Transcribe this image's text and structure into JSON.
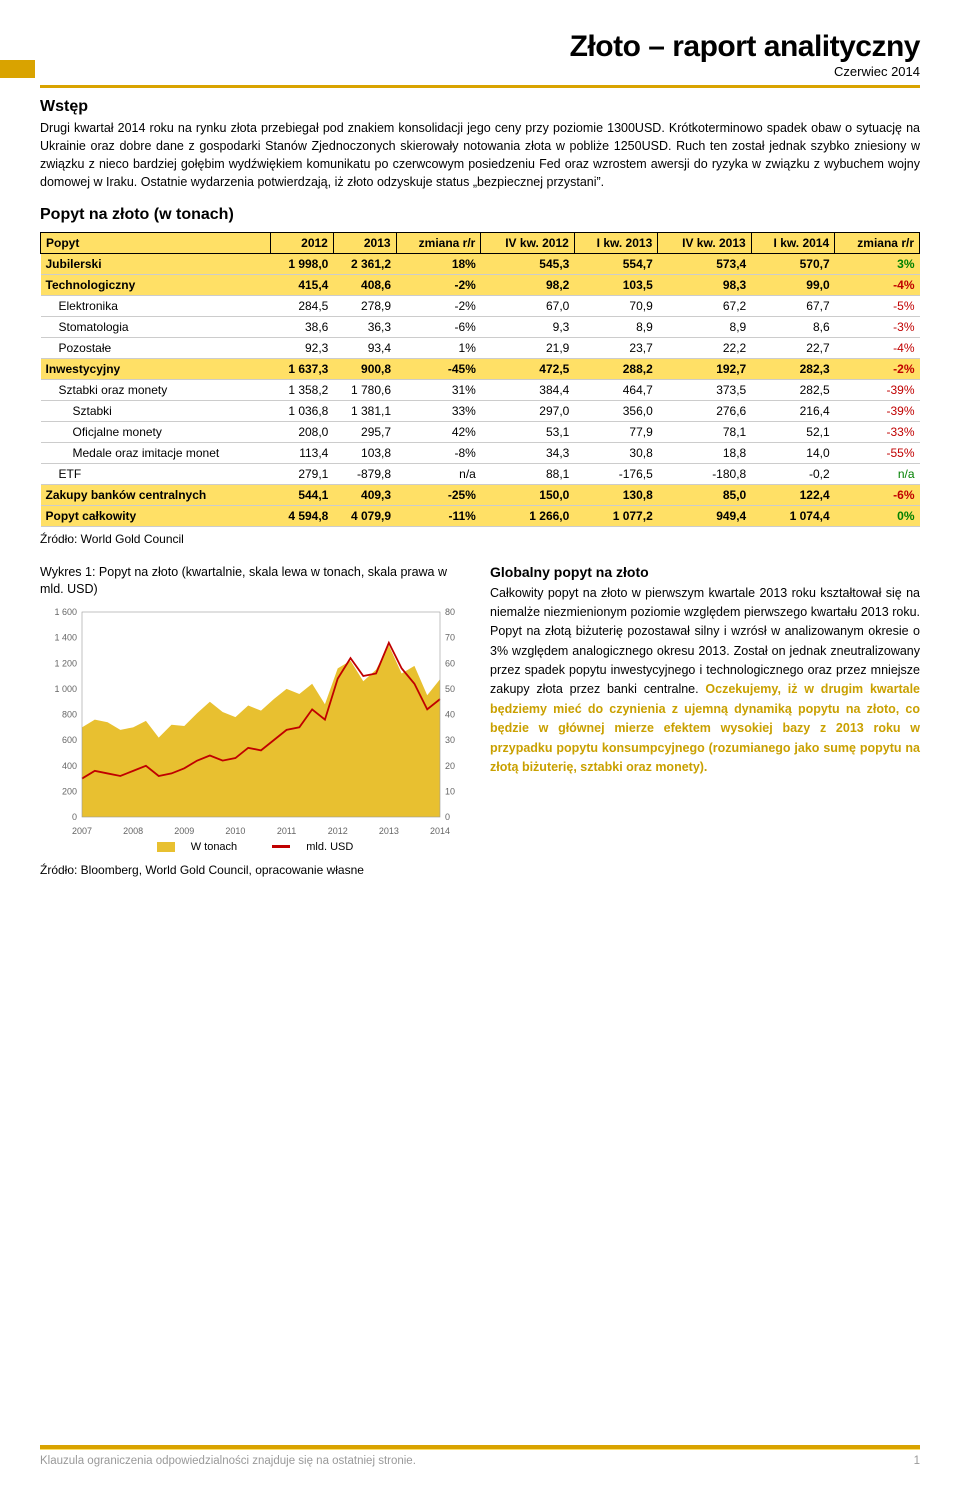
{
  "header": {
    "title": "Złoto – raport analityczny",
    "date": "Czerwiec 2014"
  },
  "intro": {
    "heading": "Wstęp",
    "text": "Drugi kwartał 2014 roku na rynku złota przebiegał pod znakiem konsolidacji jego ceny przy poziomie 1300USD. Krótkoterminowo spadek obaw o sytuację na Ukrainie oraz dobre dane z gospodarki Stanów Zjednoczonych skierowały notowania złota w pobliże 1250USD. Ruch ten został jednak szybko zniesiony w związku z nieco bardziej gołębim wydźwiękiem komunikatu po czerwcowym posiedzeniu Fed oraz wzrostem awersji do ryzyka w związku z wybuchem wojny domowej w Iraku. Ostatnie wydarzenia potwierdzają, iż złoto odzyskuje status „bezpiecznej przystani”."
  },
  "table": {
    "heading": "Popyt na złoto (w tonach)",
    "columns": [
      "Popyt",
      "2012",
      "2013",
      "zmiana r/r",
      "IV kw. 2012",
      "I kw. 2013",
      "IV kw. 2013",
      "I kw. 2014",
      "zmiana r/r"
    ],
    "rows": [
      {
        "hl": true,
        "label": "Jubilerski",
        "c": [
          "1 998,0",
          "2 361,2",
          "18%",
          "545,3",
          "554,7",
          "573,4",
          "570,7"
        ],
        "chg": "3%",
        "chgClass": "pos"
      },
      {
        "hl": true,
        "label": "Technologiczny",
        "c": [
          "415,4",
          "408,6",
          "-2%",
          "98,2",
          "103,5",
          "98,3",
          "99,0"
        ],
        "chg": "-4%",
        "chgClass": "neg"
      },
      {
        "sub": 1,
        "label": "Elektronika",
        "c": [
          "284,5",
          "278,9",
          "-2%",
          "67,0",
          "70,9",
          "67,2",
          "67,7"
        ],
        "chg": "-5%",
        "chgClass": "neg"
      },
      {
        "sub": 1,
        "label": "Stomatologia",
        "c": [
          "38,6",
          "36,3",
          "-6%",
          "9,3",
          "8,9",
          "8,9",
          "8,6"
        ],
        "chg": "-3%",
        "chgClass": "neg"
      },
      {
        "sub": 1,
        "label": "Pozostałe",
        "c": [
          "92,3",
          "93,4",
          "1%",
          "21,9",
          "23,7",
          "22,2",
          "22,7"
        ],
        "chg": "-4%",
        "chgClass": "neg"
      },
      {
        "hl": true,
        "label": "Inwestycyjny",
        "c": [
          "1 637,3",
          "900,8",
          "-45%",
          "472,5",
          "288,2",
          "192,7",
          "282,3"
        ],
        "chg": "-2%",
        "chgClass": "neg"
      },
      {
        "sub": 1,
        "label": "Sztabki oraz monety",
        "c": [
          "1 358,2",
          "1 780,6",
          "31%",
          "384,4",
          "464,7",
          "373,5",
          "282,5"
        ],
        "chg": "-39%",
        "chgClass": "neg"
      },
      {
        "sub": 2,
        "label": "Sztabki",
        "c": [
          "1 036,8",
          "1 381,1",
          "33%",
          "297,0",
          "356,0",
          "276,6",
          "216,4"
        ],
        "chg": "-39%",
        "chgClass": "neg"
      },
      {
        "sub": 2,
        "label": "Oficjalne monety",
        "c": [
          "208,0",
          "295,7",
          "42%",
          "53,1",
          "77,9",
          "78,1",
          "52,1"
        ],
        "chg": "-33%",
        "chgClass": "neg"
      },
      {
        "sub": 2,
        "label": "Medale oraz imitacje monet",
        "c": [
          "113,4",
          "103,8",
          "-8%",
          "34,3",
          "30,8",
          "18,8",
          "14,0"
        ],
        "chg": "-55%",
        "chgClass": "neg"
      },
      {
        "sub": 1,
        "label": "ETF",
        "c": [
          "279,1",
          "-879,8",
          "n/a",
          "88,1",
          "-176,5",
          "-180,8",
          "-0,2"
        ],
        "chg": "n/a",
        "chgClass": "na"
      },
      {
        "hl": true,
        "label": "Zakupy banków centralnych",
        "c": [
          "544,1",
          "409,3",
          "-25%",
          "150,0",
          "130,8",
          "85,0",
          "122,4"
        ],
        "chg": "-6%",
        "chgClass": "neg"
      },
      {
        "hl": true,
        "label": "Popyt całkowity",
        "c": [
          "4 594,8",
          "4 079,9",
          "-11%",
          "1 266,0",
          "1 077,2",
          "949,4",
          "1 074,4"
        ],
        "chg": "0%",
        "chgClass": "pos"
      }
    ],
    "source": "Źródło: World Gold Council"
  },
  "chart": {
    "caption": "Wykres 1: Popyt na złoto (kwartalnie, skala lewa w tonach, skala prawa w mld. USD)",
    "left_axis": {
      "min": 0,
      "max": 1600,
      "step": 200,
      "ticks": [
        "0",
        "200",
        "400",
        "600",
        "800",
        "1 000",
        "1 200",
        "1 400",
        "1 600"
      ]
    },
    "right_axis": {
      "min": 0,
      "max": 80,
      "step": 10,
      "ticks": [
        "0",
        "10",
        "20",
        "30",
        "40",
        "50",
        "60",
        "70",
        "80"
      ]
    },
    "x_labels": [
      "2007",
      "2008",
      "2009",
      "2010",
      "2011",
      "2012",
      "2013",
      "2014"
    ],
    "area_color": "#e8c030",
    "line_color": "#c00000",
    "area_values": [
      700,
      760,
      740,
      680,
      700,
      750,
      620,
      720,
      710,
      810,
      900,
      820,
      780,
      870,
      830,
      920,
      1000,
      960,
      1040,
      880,
      1160,
      1220,
      1060,
      1150,
      1340,
      1120,
      1180,
      950,
      1075
    ],
    "line_values": [
      15,
      18,
      17,
      16,
      18,
      20,
      16,
      17,
      19,
      22,
      24,
      22,
      23,
      27,
      26,
      30,
      34,
      35,
      42,
      38,
      54,
      62,
      55,
      56,
      68,
      58,
      52,
      42,
      46
    ],
    "legend": {
      "series1": "W tonach",
      "series2": "mld. USD"
    },
    "source": "Źródło: Bloomberg, World Gold Council, opracowanie własne"
  },
  "right": {
    "heading": "Globalny popyt na złoto",
    "text_plain": "Całkowity popyt na złoto w pierwszym kwartale 2013 roku kształtował się na niemalże niezmienionym poziomie względem pierwszego kwartału 2013 roku. Popyt na złotą biżuterię pozostawał silny i wzrósł w analizowanym okresie o 3% względem analogicznego okresu 2013. Został on jednak zneutralizowany przez spadek popytu inwestycyjnego i technologicznego oraz przez mniejsze zakupy złota przez banki centralne. ",
    "text_emph": "Oczekujemy, iż w drugim kwartale będziemy mieć do czynienia z ujemną dynamiką popytu na złoto, co będzie w głównej mierze efektem wysokiej bazy z 2013 roku w przypadku popytu konsumpcyjnego (rozumianego jako sumę popytu na złotą biżuterię, sztabki oraz monety)."
  },
  "footer": {
    "text": "Klauzula ograniczenia odpowiedzialności znajduje się na ostatniej stronie.",
    "page": "1"
  }
}
